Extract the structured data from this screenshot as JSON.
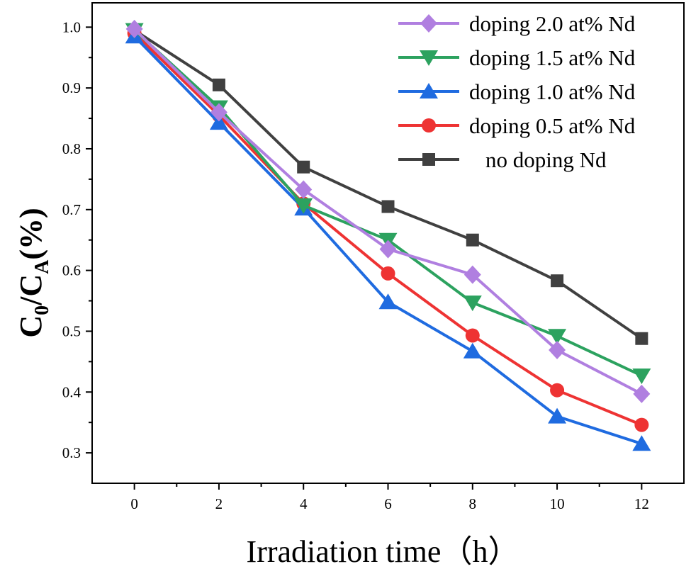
{
  "chart_data": {
    "type": "line",
    "xlabel": "Irradiation time（h）",
    "ylabel": {
      "main": "C",
      "sub0": "0",
      "slash": "/C",
      "subA": "A",
      "unit": "(%)"
    },
    "xlim": [
      -1,
      13
    ],
    "ylim": [
      0.25,
      1.04
    ],
    "x_ticks": [
      0,
      2,
      4,
      6,
      8,
      10,
      12
    ],
    "x_tick_labels": [
      "0",
      "2",
      "4",
      "6",
      "8",
      "10",
      "12"
    ],
    "y_ticks": [
      0.3,
      0.4,
      0.5,
      0.6,
      0.7,
      0.8,
      0.9,
      1.0
    ],
    "y_tick_labels": [
      "0.3",
      "0.4",
      "0.5",
      "0.6",
      "0.7",
      "0.8",
      "0.9",
      "1.0"
    ],
    "x": [
      0,
      2,
      4,
      6,
      8,
      10,
      12
    ],
    "legend_position": "top-right",
    "series": [
      {
        "name": "no doping Nd",
        "color": "#404040",
        "marker": "square",
        "values": [
          0.995,
          0.905,
          0.77,
          0.705,
          0.65,
          0.583,
          0.488
        ]
      },
      {
        "name": "doping 0.5 at% Nd",
        "color": "#ee3333",
        "marker": "circle",
        "values": [
          0.99,
          0.855,
          0.71,
          0.595,
          0.493,
          0.403,
          0.346
        ]
      },
      {
        "name": "doping 1.0 at% Nd",
        "color": "#1f6be0",
        "marker": "triangle-up",
        "values": [
          0.985,
          0.843,
          0.702,
          0.548,
          0.467,
          0.36,
          0.315
        ]
      },
      {
        "name": "doping 1.5 at% Nd",
        "color": "#2ca25f",
        "marker": "triangle-down",
        "values": [
          0.995,
          0.868,
          0.707,
          0.65,
          0.547,
          0.492,
          0.427
        ]
      },
      {
        "name": "doping 2.0 at% Nd",
        "color": "#b07fe0",
        "marker": "diamond",
        "values": [
          0.997,
          0.86,
          0.733,
          0.635,
          0.593,
          0.469,
          0.397
        ]
      }
    ],
    "legend_order": [
      4,
      3,
      2,
      1,
      0
    ],
    "grid": false
  }
}
